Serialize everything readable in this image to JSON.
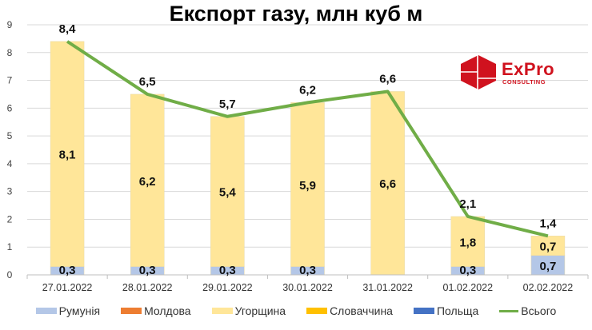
{
  "chart_data": {
    "type": "bar",
    "stacked": true,
    "title": "Експорт газу, млн куб м",
    "xlabel": "",
    "ylabel": "",
    "ylim": [
      0,
      9
    ],
    "yticks": [
      "0",
      "1",
      "2",
      "3",
      "4",
      "5",
      "6",
      "7",
      "8",
      "9"
    ],
    "grid": true,
    "legend_position": "bottom",
    "categories": [
      "27.01.2022",
      "28.01.2022",
      "29.01.2022",
      "30.01.2022",
      "31.01.2022",
      "01.02.2022",
      "02.02.2022"
    ],
    "series": [
      {
        "name": "Румунія",
        "type": "bar",
        "color": "#b4c7e7",
        "values": [
          0.3,
          0.3,
          0.3,
          0.3,
          0.0,
          0.3,
          0.7
        ],
        "labels": [
          "0,3",
          "0,3",
          "0,3",
          "0,3",
          "",
          "0,3",
          "0,7"
        ]
      },
      {
        "name": "Молдова",
        "type": "bar",
        "color": "#ed7d31",
        "values": [
          0,
          0,
          0,
          0,
          0,
          0,
          0
        ],
        "labels": [
          "",
          "",
          "",
          "",
          "",
          "",
          ""
        ]
      },
      {
        "name": "Угорщина",
        "type": "bar",
        "color": "#ffe699",
        "values": [
          8.1,
          6.2,
          5.4,
          5.9,
          6.6,
          1.8,
          0.7
        ],
        "labels": [
          "8,1",
          "6,2",
          "5,4",
          "5,9",
          "6,6",
          "1,8",
          "0,7"
        ]
      },
      {
        "name": "Словаччина",
        "type": "bar",
        "color": "#ffc000",
        "values": [
          0,
          0,
          0,
          0,
          0,
          0,
          0
        ],
        "labels": [
          "",
          "",
          "",
          "",
          "",
          "",
          ""
        ]
      },
      {
        "name": "Польща",
        "type": "bar",
        "color": "#4472c4",
        "values": [
          0,
          0,
          0,
          0,
          0,
          0,
          0
        ],
        "labels": [
          "",
          "",
          "",
          "",
          "",
          "",
          ""
        ]
      },
      {
        "name": "Всього",
        "type": "line",
        "color": "#70ad47",
        "values": [
          8.4,
          6.5,
          5.7,
          6.2,
          6.6,
          2.1,
          1.4
        ],
        "labels": [
          "8,4",
          "6,5",
          "5,7",
          "6,2",
          "6,6",
          "2,1",
          "1,4"
        ]
      }
    ]
  },
  "logo": {
    "name": "ExPro",
    "sub": "CONSULTING",
    "color": "#d0121e"
  },
  "legend": [
    {
      "label": "Румунія",
      "color": "#b4c7e7",
      "kind": "bar"
    },
    {
      "label": "Молдова",
      "color": "#ed7d31",
      "kind": "bar"
    },
    {
      "label": "Угорщина",
      "color": "#ffe699",
      "kind": "bar"
    },
    {
      "label": "Словаччина",
      "color": "#ffc000",
      "kind": "bar"
    },
    {
      "label": "Польща",
      "color": "#4472c4",
      "kind": "bar"
    },
    {
      "label": "Всього",
      "color": "#70ad47",
      "kind": "line"
    }
  ]
}
